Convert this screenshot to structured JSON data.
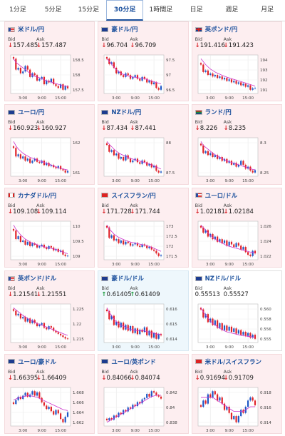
{
  "tabs": [
    {
      "label": "1分足",
      "active": false
    },
    {
      "label": "5分足",
      "active": false
    },
    {
      "label": "15分足",
      "active": false
    },
    {
      "label": "30分足",
      "active": true
    },
    {
      "label": "1時間足",
      "active": false
    },
    {
      "label": "日足",
      "active": false
    },
    {
      "label": "週足",
      "active": false
    },
    {
      "label": "月足",
      "active": false
    }
  ],
  "labels": {
    "bid": "Bid",
    "ask": "Ask"
  },
  "colors": {
    "down_card": "#fdeef0",
    "up_card": "#eef7fc",
    "title": "#1a4f9c",
    "bull": "#1f57c6",
    "bear": "#e0242a",
    "ma": "#cc33cc"
  },
  "cards": [
    {
      "pair": "米ドル/円",
      "flag": "us",
      "dir": "down",
      "bid": "157.485",
      "ask": "157.487",
      "yticks": [
        "158.5",
        "158",
        "157.5"
      ],
      "xticks": [
        "3:00",
        "9:00",
        "15:00"
      ],
      "closes": [
        158.3,
        158.0,
        158.05,
        157.9,
        157.95,
        158.1,
        158.0,
        157.8,
        157.9,
        157.85,
        157.7,
        157.75,
        157.8,
        157.6,
        157.7,
        157.65,
        157.75,
        157.6,
        157.55,
        157.5,
        157.6,
        157.45,
        157.55,
        157.49
      ],
      "ma": [
        158.3,
        158.2,
        158.15,
        158.1,
        158.05,
        158.0,
        157.95,
        157.9,
        157.85,
        157.82,
        157.8,
        157.78,
        157.75,
        157.72,
        157.7,
        157.68,
        157.66,
        157.64,
        157.62,
        157.6,
        157.58,
        157.56,
        157.55,
        157.54
      ]
    },
    {
      "pair": "豪ドル/円",
      "flag": "au",
      "dir": "down",
      "bid": "96.704",
      "ask": "96.709",
      "yticks": [
        "97.5",
        "97",
        "96.5"
      ],
      "xticks": [
        "3:00",
        "9:00",
        "15:00"
      ],
      "closes": [
        97.45,
        97.3,
        97.35,
        97.2,
        97.05,
        97.1,
        97.0,
        96.95,
        97.05,
        97.0,
        96.9,
        96.95,
        97.0,
        96.9,
        96.85,
        96.95,
        96.9,
        96.8,
        96.85,
        96.75,
        96.8,
        96.65,
        96.6,
        96.7
      ],
      "ma": [
        97.45,
        97.38,
        97.3,
        97.22,
        97.15,
        97.1,
        97.05,
        97.02,
        97.0,
        96.98,
        96.96,
        96.95,
        96.94,
        96.93,
        96.92,
        96.91,
        96.9,
        96.88,
        96.86,
        96.84,
        96.82,
        96.8,
        96.78,
        96.76
      ]
    },
    {
      "pair": "英ポンド/円",
      "flag": "gb",
      "dir": "down",
      "bid": "191.416",
      "ask": "191.423",
      "yticks": [
        "194",
        "193",
        "192",
        "191"
      ],
      "xticks": [
        "3:00",
        "9:00",
        "15:00"
      ],
      "closes": [
        193.0,
        192.5,
        192.6,
        192.3,
        192.4,
        192.2,
        192.3,
        192.1,
        192.2,
        192.0,
        192.1,
        191.9,
        192.0,
        191.8,
        191.9,
        191.7,
        191.8,
        191.6,
        191.7,
        191.5,
        191.6,
        191.3,
        191.4,
        191.42
      ],
      "ma": [
        193.4,
        193.2,
        193.0,
        192.85,
        192.7,
        192.6,
        192.5,
        192.42,
        192.35,
        192.28,
        192.22,
        192.15,
        192.1,
        192.05,
        192.0,
        191.95,
        191.9,
        191.85,
        191.8,
        191.75,
        191.7,
        191.65,
        191.6,
        191.55
      ]
    },
    {
      "pair": "ユーロ/円",
      "flag": "eu",
      "dir": "down",
      "bid": "160.923",
      "ask": "160.927",
      "yticks": [
        "162",
        "161"
      ],
      "xticks": [
        "3:00",
        "9:00",
        "15:00"
      ],
      "closes": [
        162.0,
        161.6,
        161.7,
        161.5,
        161.6,
        161.4,
        161.5,
        161.3,
        161.4,
        161.5,
        161.35,
        161.3,
        161.4,
        161.2,
        161.3,
        161.15,
        161.2,
        161.1,
        161.05,
        161.15,
        161.0,
        160.95,
        160.85,
        160.92
      ],
      "ma": [
        162.3,
        162.1,
        161.95,
        161.85,
        161.75,
        161.68,
        161.62,
        161.56,
        161.52,
        161.48,
        161.44,
        161.4,
        161.36,
        161.32,
        161.28,
        161.24,
        161.2,
        161.16,
        161.12,
        161.08,
        161.05,
        161.02,
        160.99,
        160.97
      ]
    },
    {
      "pair": "NZドル/円",
      "flag": "nz",
      "dir": "down",
      "bid": "87.434",
      "ask": "87.441",
      "yticks": [
        "88",
        "87.5"
      ],
      "xticks": [
        "3:00",
        "9:00",
        "15:00"
      ],
      "closes": [
        88.2,
        88.0,
        88.05,
        87.9,
        87.95,
        87.8,
        87.85,
        87.75,
        87.9,
        87.8,
        87.7,
        87.75,
        87.8,
        87.7,
        87.65,
        87.75,
        87.7,
        87.6,
        87.65,
        87.55,
        87.6,
        87.45,
        87.4,
        87.43
      ],
      "ma": [
        88.3,
        88.22,
        88.15,
        88.08,
        88.02,
        87.97,
        87.93,
        87.9,
        87.87,
        87.84,
        87.81,
        87.79,
        87.77,
        87.75,
        87.73,
        87.71,
        87.69,
        87.67,
        87.65,
        87.62,
        87.59,
        87.56,
        87.53,
        87.5
      ]
    },
    {
      "pair": "ランド/円",
      "flag": "za",
      "dir": "down",
      "bid": "8.226",
      "ask": "8.235",
      "yticks": [
        "8.3",
        "8.25"
      ],
      "xticks": [
        "3:00",
        "9:00",
        "15:00"
      ],
      "closes": [
        8.29,
        8.27,
        8.275,
        8.265,
        8.27,
        8.26,
        8.265,
        8.255,
        8.26,
        8.25,
        8.255,
        8.245,
        8.25,
        8.24,
        8.245,
        8.235,
        8.24,
        8.25,
        8.24,
        8.23,
        8.235,
        8.225,
        8.22,
        8.226
      ],
      "ma": [
        8.3,
        8.29,
        8.285,
        8.28,
        8.275,
        8.27,
        8.266,
        8.262,
        8.259,
        8.256,
        8.253,
        8.25,
        8.248,
        8.246,
        8.244,
        8.242,
        8.24,
        8.238,
        8.236,
        8.234,
        8.232,
        8.23,
        8.228,
        8.227
      ]
    },
    {
      "pair": "カナダドル/円",
      "flag": "ca",
      "dir": "down",
      "bid": "109.108",
      "ask": "109.114",
      "yticks": [
        "110",
        "109.5",
        "109"
      ],
      "xticks": [
        "3:00",
        "9:00",
        "15:00"
      ],
      "closes": [
        110.0,
        109.7,
        109.8,
        109.6,
        109.65,
        109.5,
        109.6,
        109.45,
        109.55,
        109.5,
        109.4,
        109.45,
        109.5,
        109.4,
        109.35,
        109.45,
        109.4,
        109.3,
        109.35,
        109.25,
        109.3,
        109.15,
        109.1,
        109.11
      ],
      "ma": [
        110.2,
        110.05,
        109.95,
        109.85,
        109.77,
        109.7,
        109.65,
        109.6,
        109.56,
        109.53,
        109.5,
        109.47,
        109.45,
        109.43,
        109.41,
        109.39,
        109.37,
        109.35,
        109.33,
        109.3,
        109.27,
        109.24,
        109.21,
        109.18
      ]
    },
    {
      "pair": "スイスフラン/円",
      "flag": "ch",
      "dir": "down",
      "bid": "171.728",
      "ask": "171.744",
      "yticks": [
        "173",
        "172.5",
        "172",
        "171.5"
      ],
      "xticks": [
        "3:00",
        "9:00",
        "15:00"
      ],
      "closes": [
        172.8,
        172.4,
        172.5,
        172.3,
        172.35,
        172.2,
        172.3,
        172.15,
        172.25,
        172.2,
        172.1,
        172.15,
        172.2,
        172.1,
        172.05,
        172.15,
        172.1,
        172.0,
        172.05,
        171.95,
        171.9,
        171.8,
        171.7,
        171.73
      ],
      "ma": [
        172.9,
        172.75,
        172.65,
        172.55,
        172.48,
        172.42,
        172.38,
        172.34,
        172.3,
        172.27,
        172.24,
        172.22,
        172.2,
        172.18,
        172.16,
        172.14,
        172.12,
        172.1,
        172.07,
        172.04,
        172.0,
        171.96,
        171.92,
        171.88
      ]
    },
    {
      "pair": "ユーロ/ドル",
      "flag": "us",
      "dir": "down",
      "bid": "1.02181",
      "ask": "1.02184",
      "yticks": [
        "1.026",
        "1.024",
        "1.022"
      ],
      "xticks": [
        "3:00",
        "9:00",
        "15:00"
      ],
      "closes": [
        1.0258,
        1.025,
        1.0254,
        1.0244,
        1.0248,
        1.024,
        1.0244,
        1.0236,
        1.024,
        1.0234,
        1.0238,
        1.023,
        1.0236,
        1.0232,
        1.0228,
        1.0234,
        1.023,
        1.0224,
        1.0228,
        1.022,
        1.0216,
        1.0214,
        1.0222,
        1.0218
      ],
      "ma": [
        1.0262,
        1.0258,
        1.0254,
        1.025,
        1.0246,
        1.0243,
        1.024,
        1.0238,
        1.0236,
        1.0234,
        1.0232,
        1.023,
        1.0229,
        1.0228,
        1.0227,
        1.0226,
        1.0225,
        1.0224,
        1.0223,
        1.0222,
        1.0221,
        1.022,
        1.022,
        1.0219
      ]
    },
    {
      "pair": "英ポンド/ドル",
      "flag": "us",
      "dir": "down",
      "bid": "1.21541",
      "ask": "1.21551",
      "yticks": [
        "1.225",
        "1.22",
        "1.215"
      ],
      "xticks": [
        "3:00",
        "9:00",
        "15:00"
      ],
      "closes": [
        1.2245,
        1.223,
        1.2235,
        1.222,
        1.2225,
        1.221,
        1.222,
        1.2205,
        1.2215,
        1.2205,
        1.2195,
        1.22,
        1.2205,
        1.219,
        1.2185,
        1.2195,
        1.219,
        1.218,
        1.2175,
        1.217,
        1.2165,
        1.216,
        1.2155,
        1.2154
      ],
      "ma": [
        1.2255,
        1.2248,
        1.2242,
        1.2236,
        1.223,
        1.2225,
        1.222,
        1.2216,
        1.2212,
        1.2208,
        1.2204,
        1.2201,
        1.2198,
        1.2195,
        1.2192,
        1.2189,
        1.2186,
        1.2183,
        1.218,
        1.2177,
        1.2174,
        1.2171,
        1.2168,
        1.2165
      ]
    },
    {
      "pair": "豪ドル/ドル",
      "flag": "au",
      "dir": "up",
      "bid": "0.61405",
      "ask": "0.61409",
      "yticks": [
        "0.616",
        "0.615",
        "0.614"
      ],
      "xticks": [
        "3:00",
        "9:00",
        "15:00"
      ],
      "closes": [
        0.6162,
        0.6155,
        0.6158,
        0.615,
        0.6153,
        0.6148,
        0.6152,
        0.6146,
        0.615,
        0.6145,
        0.6149,
        0.6143,
        0.6147,
        0.6142,
        0.6146,
        0.6144,
        0.6148,
        0.6141,
        0.6145,
        0.6139,
        0.6143,
        0.6138,
        0.6142,
        0.6141
      ],
      "ma": [
        0.6165,
        0.6161,
        0.6158,
        0.6155,
        0.6153,
        0.6151,
        0.615,
        0.6149,
        0.6148,
        0.6147,
        0.6146,
        0.6146,
        0.6145,
        0.6145,
        0.6145,
        0.6145,
        0.6145,
        0.6144,
        0.6144,
        0.6143,
        0.6143,
        0.6142,
        0.6142,
        0.6142
      ]
    },
    {
      "pair": "NZドル/ドル",
      "flag": "nz",
      "dir": "flat",
      "bid": "0.55513",
      "ask": "0.55527",
      "yticks": [
        "0.560",
        "0.558",
        "0.556",
        "0.555"
      ],
      "xticks": [
        "3:00",
        "9:00",
        "15:00"
      ],
      "closes": [
        0.5602,
        0.5588,
        0.5594,
        0.558,
        0.5586,
        0.5575,
        0.5583,
        0.557,
        0.5578,
        0.5566,
        0.5574,
        0.5565,
        0.5572,
        0.5563,
        0.5569,
        0.556,
        0.5566,
        0.5558,
        0.5563,
        0.5556,
        0.5561,
        0.5553,
        0.5558,
        0.5551
      ],
      "ma": [
        0.5605,
        0.5598,
        0.5592,
        0.5587,
        0.5582,
        0.5578,
        0.5575,
        0.5572,
        0.5569,
        0.5567,
        0.5565,
        0.5563,
        0.5562,
        0.5561,
        0.556,
        0.5559,
        0.5558,
        0.5557,
        0.5556,
        0.5556,
        0.5555,
        0.5555,
        0.5554,
        0.5554
      ]
    },
    {
      "pair": "ユーロ/豪ドル",
      "flag": "eu",
      "dir": "down",
      "bid": "1.66395",
      "ask": "1.66409",
      "yticks": [
        "1.668",
        "1.666",
        "1.664",
        "1.662"
      ],
      "xticks": [
        "3:00",
        "9:00",
        "15:00"
      ],
      "closes": [
        1.6655,
        1.6662,
        1.6668,
        1.6664,
        1.667,
        1.6675,
        1.6668,
        1.6672,
        1.6678,
        1.667,
        1.6676,
        1.6666,
        1.6658,
        1.6652,
        1.6646,
        1.665,
        1.6642,
        1.6636,
        1.6644,
        1.6638,
        1.6628,
        1.6622,
        1.6632,
        1.664
      ],
      "ma": [
        1.6662,
        1.6664,
        1.6666,
        1.6667,
        1.6668,
        1.6669,
        1.667,
        1.667,
        1.6669,
        1.6668,
        1.6667,
        1.6665,
        1.6663,
        1.6661,
        1.6659,
        1.6657,
        1.6655,
        1.6653,
        1.6651,
        1.6649,
        1.6647,
        1.6645,
        1.6644,
        1.6643
      ]
    },
    {
      "pair": "ユーロ/英ポンド",
      "flag": "eu",
      "dir": "down",
      "bid": "0.84066",
      "ask": "0.84074",
      "yticks": [
        "0.842",
        "0.84",
        "0.838"
      ],
      "xticks": [
        "3:00",
        "9:00",
        "15:00"
      ],
      "closes": [
        0.8375,
        0.8378,
        0.8376,
        0.8382,
        0.838,
        0.8386,
        0.8384,
        0.839,
        0.8388,
        0.8394,
        0.8392,
        0.8398,
        0.8396,
        0.8402,
        0.84,
        0.8406,
        0.8408,
        0.8414,
        0.841,
        0.8418,
        0.8416,
        0.8412,
        0.841,
        0.8407
      ],
      "ma": [
        0.8372,
        0.8374,
        0.8376,
        0.8378,
        0.838,
        0.8382,
        0.8384,
        0.8386,
        0.8388,
        0.839,
        0.8392,
        0.8394,
        0.8396,
        0.8398,
        0.84,
        0.8402,
        0.8404,
        0.8406,
        0.8408,
        0.841,
        0.8411,
        0.8412,
        0.8412,
        0.8412
      ]
    },
    {
      "pair": "米ドル/スイスフラン",
      "flag": "ch",
      "dir": "down",
      "bid": "0.91694",
      "ask": "0.91709",
      "yticks": [
        "0.918",
        "0.916",
        "0.914"
      ],
      "xticks": [
        "3:00",
        "9:00",
        "15:00"
      ],
      "closes": [
        0.9168,
        0.9172,
        0.917,
        0.9176,
        0.9174,
        0.9178,
        0.9176,
        0.9172,
        0.9174,
        0.917,
        0.9166,
        0.9168,
        0.9164,
        0.916,
        0.9162,
        0.9158,
        0.9162,
        0.9166,
        0.9164,
        0.9168,
        0.9172,
        0.9174,
        0.9172,
        0.9169
      ],
      "ma": [
        0.9174,
        0.9174,
        0.9174,
        0.9174,
        0.9174,
        0.9174,
        0.9173,
        0.9172,
        0.9171,
        0.917,
        0.9169,
        0.9168,
        0.9167,
        0.9166,
        0.9165,
        0.9165,
        0.9165,
        0.9165,
        0.9165,
        0.9166,
        0.9167,
        0.9168,
        0.9168,
        0.9168
      ]
    }
  ]
}
